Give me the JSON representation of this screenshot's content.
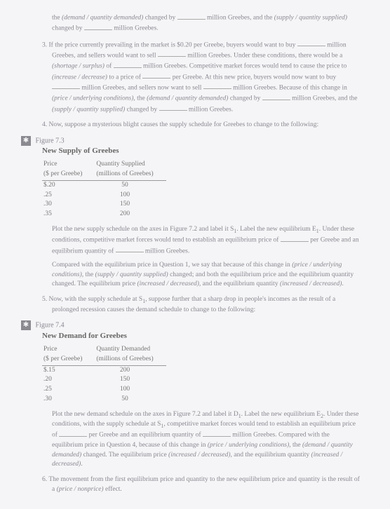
{
  "intro": {
    "line": "the (demand / quantity demanded) changed by ________ million Greebes, and the (supply / quantity supplied) changed by ________ million Greebes."
  },
  "q3": {
    "num": "3.",
    "text": "If the price currently prevailing in the market is $0.20 per Greebe, buyers would want to buy ________ million Greebes, and sellers would want to sell ________ million Greebes. Under these conditions, there would be a (shortage / surplus) of ________ million Greebes. Competitive market forces would tend to cause the price to (increase / decrease) to a price of ________ per Greebe. At this new price, buyers would now want to buy ________ million Greebes, and sellers now want to sell ________ million Greebes. Because of this change in (price / underlying conditions), the (demand / quantity demanded) changed by ________ million Greebes, and the (supply / quantity supplied) changed by ________ million Greebes."
  },
  "q4": {
    "num": "4.",
    "text": "Now, suppose a mysterious blight causes the supply schedule for Greebes to change to the following:"
  },
  "fig73": {
    "label": "Figure 7.3",
    "title": "New Supply of Greebes",
    "col1": "Price ($ per Greebe)",
    "col2": "Quantity Supplied (millions of Greebes)",
    "rows": [
      {
        "p": "$.20",
        "q": "50"
      },
      {
        "p": ".25",
        "q": "100"
      },
      {
        "p": ".30",
        "q": "150"
      },
      {
        "p": ".35",
        "q": "200"
      }
    ]
  },
  "afterfig73a": "Plot the new supply schedule on the axes in Figure 7.2 and label it S₁. Label the new equilibrium E₁. Under these conditions, competitive market forces would tend to establish an equilibrium price of ________ per Greebe and an equilibrium quantity of ________ million Greebes.",
  "afterfig73b": "Compared with the equilibrium price in Question 1, we say that because of this change in (price / underlying conditions), the (supply / quantity supplied) changed; and both the equilibrium price and the equilibrium quantity changed. The equilibrium price (increased / decreased), and the equilibrium quantity (increased / decreased).",
  "q5": {
    "num": "5.",
    "text": "Now, with the supply schedule at S₁, suppose further that a sharp drop in people's incomes as the result of a prolonged recession causes the demand schedule to change to the following:"
  },
  "fig74": {
    "label": "Figure 7.4",
    "title": "New Demand for Greebes",
    "col1": "Price ($ per Greebe)",
    "col2": "Quantity Demanded (millions of Greebes)",
    "rows": [
      {
        "p": "$.15",
        "q": "200"
      },
      {
        "p": ".20",
        "q": "150"
      },
      {
        "p": ".25",
        "q": "100"
      },
      {
        "p": ".30",
        "q": "50"
      }
    ]
  },
  "afterfig74a": "Plot the new demand schedule on the axes in Figure 7.2 and label it D₁. Label the new equilibrium E₂. Under these conditions, with the supply schedule at S₁, competitive market forces would tend to establish an equilibrium price of ________ per Greebe and an equilibrium quantity of ________ million Greebes. Compared with the equilibrium price in Question 4, because of this change in (price / underlying conditions), the (demand / quantity demanded) changed. The equilibrium price (increased / decreased), and the equilibrium quantity (increased / decreased).",
  "q6": {
    "num": "6.",
    "text": "The movement from the first equilibrium price and quantity to the new equilibrium price and quantity is the result of a (price / nonprice) effect."
  },
  "badge": "✱"
}
